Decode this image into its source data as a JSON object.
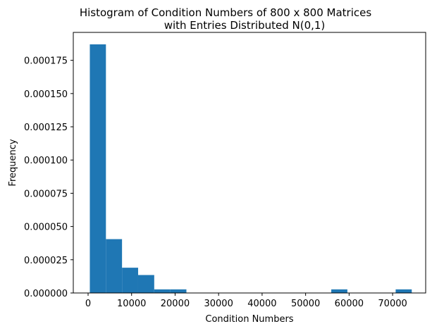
{
  "chart_data": {
    "type": "bar",
    "title_line1": "Histogram of Condition Numbers of 800 x 800 Matrices",
    "title_line2": "with Entries Distributed N(0,1)",
    "xlabel": "Condition Numbers",
    "ylabel": "Frequency",
    "xlim": [
      -3400,
      77600
    ],
    "ylim": [
      0,
      0.000196
    ],
    "grid": false,
    "bar_color": "#1f77b4",
    "bins": [
      {
        "x0": 400,
        "x1": 4100,
        "value": 0.000187
      },
      {
        "x0": 4100,
        "x1": 7800,
        "value": 4.05e-05
      },
      {
        "x0": 7800,
        "x1": 11500,
        "value": 1.9e-05
      },
      {
        "x0": 11500,
        "x1": 15200,
        "value": 1.35e-05
      },
      {
        "x0": 15200,
        "x1": 18900,
        "value": 2.7e-06
      },
      {
        "x0": 18900,
        "x1": 22600,
        "value": 2.7e-06
      },
      {
        "x0": 22600,
        "x1": 26300,
        "value": 0
      },
      {
        "x0": 26300,
        "x1": 30000,
        "value": 0
      },
      {
        "x0": 30000,
        "x1": 33700,
        "value": 0
      },
      {
        "x0": 33700,
        "x1": 37400,
        "value": 0
      },
      {
        "x0": 37400,
        "x1": 41100,
        "value": 0
      },
      {
        "x0": 41100,
        "x1": 44800,
        "value": 0
      },
      {
        "x0": 44800,
        "x1": 48500,
        "value": 0
      },
      {
        "x0": 48500,
        "x1": 52200,
        "value": 0
      },
      {
        "x0": 52200,
        "x1": 55900,
        "value": 0
      },
      {
        "x0": 55900,
        "x1": 59600,
        "value": 2.7e-06
      },
      {
        "x0": 59600,
        "x1": 63300,
        "value": 0
      },
      {
        "x0": 63300,
        "x1": 67000,
        "value": 0
      },
      {
        "x0": 67000,
        "x1": 70700,
        "value": 0
      },
      {
        "x0": 70700,
        "x1": 74400,
        "value": 2.7e-06
      }
    ],
    "x_ticks": [
      {
        "value": 0,
        "label": "0"
      },
      {
        "value": 10000,
        "label": "10000"
      },
      {
        "value": 20000,
        "label": "20000"
      },
      {
        "value": 30000,
        "label": "30000"
      },
      {
        "value": 40000,
        "label": "40000"
      },
      {
        "value": 50000,
        "label": "50000"
      },
      {
        "value": 60000,
        "label": "60000"
      },
      {
        "value": 70000,
        "label": "70000"
      }
    ],
    "y_ticks": [
      {
        "value": 0,
        "label": "0.000000"
      },
      {
        "value": 2.5e-05,
        "label": "0.000025"
      },
      {
        "value": 5e-05,
        "label": "0.000050"
      },
      {
        "value": 7.5e-05,
        "label": "0.000075"
      },
      {
        "value": 0.0001,
        "label": "0.000100"
      },
      {
        "value": 0.000125,
        "label": "0.000125"
      },
      {
        "value": 0.00015,
        "label": "0.000150"
      },
      {
        "value": 0.000175,
        "label": "0.000175"
      }
    ]
  }
}
